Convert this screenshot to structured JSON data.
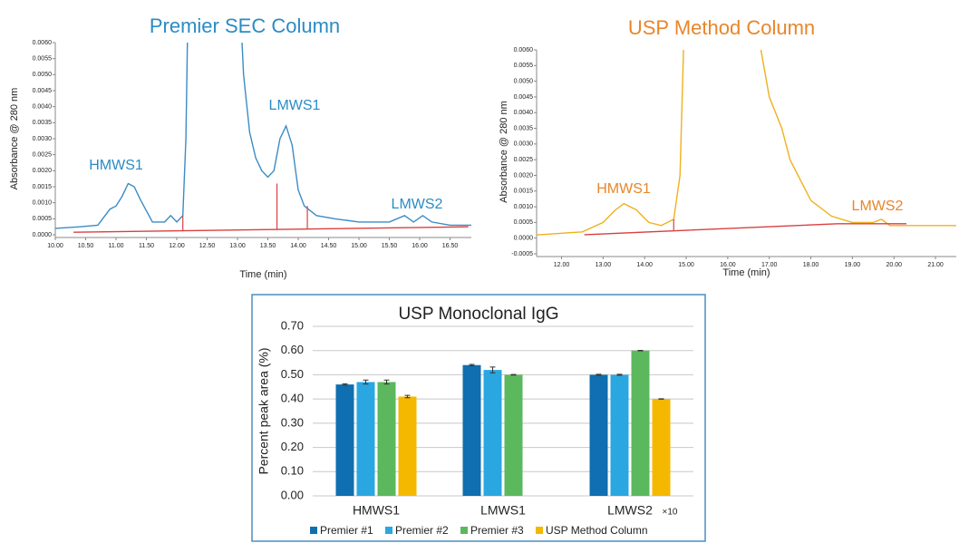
{
  "chart_data": [
    {
      "type": "line",
      "title": "Premier SEC Column",
      "title_color": "#2a8cc4",
      "x_label": "Time (min)",
      "y_label": "Absorbance @ 280 nm",
      "xlim": [
        10,
        16.85
      ],
      "ylim": [
        0,
        0.006
      ],
      "xticks": [
        {
          "value": 10,
          "label": "10.00"
        },
        {
          "value": 10.5,
          "label": "10.50"
        },
        {
          "value": 11,
          "label": "11.00"
        },
        {
          "value": 11.5,
          "label": "11.50"
        },
        {
          "value": 12,
          "label": "12.00"
        },
        {
          "value": 12.5,
          "label": "12.50"
        },
        {
          "value": 13,
          "label": "13.00"
        },
        {
          "value": 13.5,
          "label": "13.50"
        },
        {
          "value": 14,
          "label": "14.00"
        },
        {
          "value": 14.5,
          "label": "14.50"
        },
        {
          "value": 15,
          "label": "15.00"
        },
        {
          "value": 15.5,
          "label": "15.50"
        },
        {
          "value": 16,
          "label": "16.00"
        },
        {
          "value": 16.5,
          "label": "16.50"
        }
      ],
      "yticks": [
        {
          "value": 0,
          "label": "0.0000"
        },
        {
          "value": 0.0005,
          "label": "0.0005"
        },
        {
          "value": 0.001,
          "label": "0.0010"
        },
        {
          "value": 0.0015,
          "label": "0.0015"
        },
        {
          "value": 0.002,
          "label": "0.0020"
        },
        {
          "value": 0.0025,
          "label": "0.0025"
        },
        {
          "value": 0.003,
          "label": "0.0030"
        },
        {
          "value": 0.0035,
          "label": "0.0035"
        },
        {
          "value": 0.004,
          "label": "0.0040"
        },
        {
          "value": 0.0045,
          "label": "0.0045"
        },
        {
          "value": 0.005,
          "label": "0.0050"
        },
        {
          "value": 0.0055,
          "label": "0.0055"
        },
        {
          "value": 0.006,
          "label": "0.0060"
        }
      ],
      "series": [
        {
          "color": "#3a8cc6",
          "x": [
            10.0,
            10.4,
            10.7,
            10.9,
            11.0,
            11.1,
            11.2,
            11.3,
            11.4,
            11.6,
            11.8,
            11.9,
            12.0,
            12.1,
            12.15,
            12.2,
            13.0,
            13.1,
            13.2,
            13.3,
            13.4,
            13.5,
            13.6,
            13.7,
            13.8,
            13.9,
            14.0,
            14.1,
            14.3,
            14.6,
            15.0,
            15.5,
            15.75,
            15.9,
            16.05,
            16.2,
            16.5,
            16.85
          ],
          "values": [
            0.0002,
            0.00025,
            0.0003,
            0.0008,
            0.0009,
            0.0012,
            0.0016,
            0.0015,
            0.0011,
            0.0004,
            0.0004,
            0.0006,
            0.0004,
            0.0006,
            0.003,
            0.009,
            0.009,
            0.005,
            0.0032,
            0.0024,
            0.002,
            0.0018,
            0.002,
            0.003,
            0.0034,
            0.0028,
            0.0014,
            0.0009,
            0.0006,
            0.0005,
            0.0004,
            0.0004,
            0.0006,
            0.0004,
            0.0006,
            0.0004,
            0.0003,
            0.0003
          ]
        },
        {
          "color": "#d94040",
          "x": [
            10.3,
            16.8
          ],
          "values": [
            8e-05,
            0.00025
          ]
        }
      ],
      "drop_lines": {
        "color": "#d94040",
        "x": [
          12.1,
          13.65,
          14.15
        ],
        "values": [
          0.0006,
          0.0016,
          0.0009
        ]
      },
      "annotations": [
        "HMWS1",
        "LMWS1",
        "LMWS2"
      ],
      "annotation_color": "#2a8cc4"
    },
    {
      "type": "line",
      "title": "USP Method Column",
      "title_color": "#e8862a",
      "x_label": "Time (min)",
      "y_label": "Absorbance @ 280 nm",
      "xlim": [
        11.4,
        21.5
      ],
      "ylim": [
        -0.0005,
        0.006
      ],
      "xticks": [
        {
          "value": 12,
          "label": "12.00"
        },
        {
          "value": 13,
          "label": "13.00"
        },
        {
          "value": 14,
          "label": "14.00"
        },
        {
          "value": 15,
          "label": "15.00"
        },
        {
          "value": 16,
          "label": "16.00"
        },
        {
          "value": 17,
          "label": "17.00"
        },
        {
          "value": 18,
          "label": "18.00"
        },
        {
          "value": 19,
          "label": "19.00"
        },
        {
          "value": 20,
          "label": "20.00"
        },
        {
          "value": 21,
          "label": "21.00"
        }
      ],
      "yticks": [
        {
          "value": -0.0005,
          "label": "-0.0005"
        },
        {
          "value": 0,
          "label": "0.0000"
        },
        {
          "value": 0.0005,
          "label": "0.0005"
        },
        {
          "value": 0.001,
          "label": "0.0010"
        },
        {
          "value": 0.0015,
          "label": "0.0015"
        },
        {
          "value": 0.002,
          "label": "0.0020"
        },
        {
          "value": 0.0025,
          "label": "0.0025"
        },
        {
          "value": 0.003,
          "label": "0.0030"
        },
        {
          "value": 0.0035,
          "label": "0.0035"
        },
        {
          "value": 0.004,
          "label": "0.0040"
        },
        {
          "value": 0.0045,
          "label": "0.0045"
        },
        {
          "value": 0.005,
          "label": "0.0050"
        },
        {
          "value": 0.0055,
          "label": "0.0055"
        },
        {
          "value": 0.006,
          "label": "0.0060"
        }
      ],
      "series": [
        {
          "color": "#f0b020",
          "x": [
            11.4,
            12.5,
            13.0,
            13.3,
            13.5,
            13.8,
            14.1,
            14.4,
            14.7,
            14.85,
            15.0,
            16.7,
            16.8,
            17.0,
            17.3,
            17.5,
            18.0,
            18.5,
            19.0,
            19.5,
            19.7,
            19.9,
            21.5
          ],
          "values": [
            0.0001,
            0.0002,
            0.0005,
            0.0009,
            0.0011,
            0.0009,
            0.0005,
            0.0004,
            0.0006,
            0.002,
            0.009,
            0.009,
            0.006,
            0.0045,
            0.0035,
            0.0025,
            0.0012,
            0.0007,
            0.0005,
            0.0005,
            0.0006,
            0.0004,
            0.0004
          ]
        },
        {
          "color": "#d94040",
          "x": [
            12.55,
            18.65,
            20.3
          ],
          "values": [
            0.00011,
            0.00046,
            0.00046
          ]
        }
      ],
      "drop_lines": {
        "color": "#d94040",
        "x": [
          14.7
        ],
        "values": [
          0.0006
        ]
      },
      "annotations": [
        "HMWS1",
        "LMWS2"
      ],
      "annotation_color": "#e8862a"
    },
    {
      "type": "bar",
      "title": "USP Monoclonal IgG",
      "y_label": "Percent peak area (%)",
      "categories": [
        "HMWS1",
        "LMWS1",
        "LMWS2"
      ],
      "annotations": [
        "×10"
      ],
      "ylim": [
        0,
        0.7
      ],
      "yticks": [
        {
          "value": 0,
          "label": "0.00"
        },
        {
          "value": 0.1,
          "label": "0.10"
        },
        {
          "value": 0.2,
          "label": "0.20"
        },
        {
          "value": 0.3,
          "label": "0.30"
        },
        {
          "value": 0.4,
          "label": "0.40"
        },
        {
          "value": 0.5,
          "label": "0.50"
        },
        {
          "value": 0.6,
          "label": "0.60"
        },
        {
          "value": 0.7,
          "label": "0.70"
        }
      ],
      "grid": true,
      "series": [
        {
          "name": "Premier #1",
          "color": "#0f6fb0",
          "values": [
            0.46,
            0.54,
            0.5
          ],
          "errors": [
            0.003,
            0.003,
            0.002
          ]
        },
        {
          "name": "Premier #2",
          "color": "#2aa7e0",
          "values": [
            0.47,
            0.52,
            0.5
          ],
          "errors": [
            0.008,
            0.012,
            0.002
          ]
        },
        {
          "name": "Premier #3",
          "color": "#5cb85c",
          "values": [
            0.47,
            0.5,
            0.6
          ],
          "errors": [
            0.008,
            0.001,
            0.001
          ]
        },
        {
          "name": "USP Method Column",
          "color": "#f5b800",
          "values": [
            0.41,
            null,
            0.4
          ],
          "errors": [
            0.005,
            null,
            0.001
          ]
        }
      ]
    }
  ]
}
